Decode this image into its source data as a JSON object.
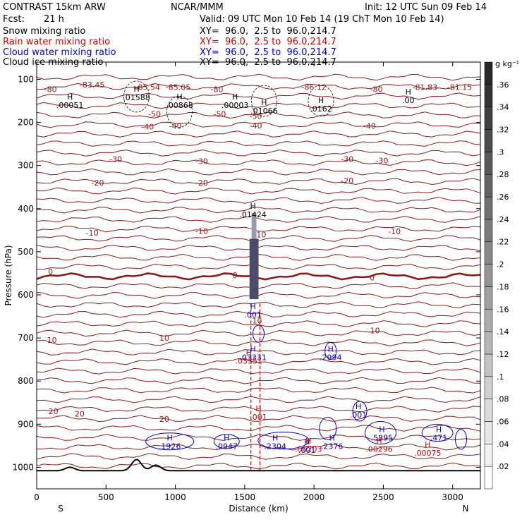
{
  "header": {
    "model": "CONTRAST 15km ARW",
    "org": "NCAR/MMM",
    "init": "Init: 12 UTC Sun 09 Feb 14",
    "fcst_label": "Fcst:",
    "fcst_value": "21 h",
    "valid": "Valid: 09 UTC Mon 10 Feb 14 (19 ChT Mon 10 Feb 14)",
    "fields": [
      {
        "name": "Snow mixing ratio",
        "xy": "XY=  96.0,  2.5 to  96.0,214.7",
        "color": "#000000"
      },
      {
        "name": "Rain water mixing ratio",
        "xy": "XY=  96.0,  2.5 to  96.0,214.7",
        "color": "#cc0000"
      },
      {
        "name": "Cloud water mixing ratio",
        "xy": "XY=  96.0,  2.5 to  96.0,214.7",
        "color": "#0000cc"
      },
      {
        "name": "Cloud ice mixing ratio",
        "xy": "XY=  96.0,  2.5 to  96.0,214.7",
        "color": "#000000"
      }
    ]
  },
  "chart_data": {
    "type": "contour cross-section",
    "xlabel": "Distance (km)",
    "ylabel": "Pressure (hPa)",
    "xlim": [
      0,
      3200
    ],
    "ylim": [
      1050,
      60
    ],
    "x_ticks": [
      0,
      500,
      1000,
      1500,
      2000,
      2500,
      3000
    ],
    "y_ticks": [
      100,
      200,
      300,
      400,
      500,
      600,
      700,
      800,
      900,
      1000
    ],
    "left_end": "S",
    "right_end": "N",
    "colorbar": {
      "unit": "g kg⁻¹",
      "levels": [
        0.02,
        0.04,
        0.06,
        0.08,
        0.1,
        0.12,
        0.14,
        0.16,
        0.18,
        0.2,
        0.22,
        0.24,
        0.26,
        0.28,
        0.3,
        0.32,
        0.34,
        0.36
      ],
      "level_labels": [
        ".02",
        ".04",
        ".06",
        ".08",
        ".1",
        ".12",
        ".14",
        ".16",
        ".18",
        ".2",
        ".22",
        ".24",
        ".26",
        ".28",
        ".3",
        ".32",
        ".34",
        ".36"
      ]
    },
    "temperature_labels": [
      {
        "text": "-83.45",
        "x": 400,
        "p": 112
      },
      {
        "text": "-85.54",
        "x": 800,
        "p": 118
      },
      {
        "text": "-85.05",
        "x": 1020,
        "p": 118
      },
      {
        "text": "-86.12",
        "x": 2000,
        "p": 118
      },
      {
        "text": "-81.83",
        "x": 2800,
        "p": 118
      },
      {
        "text": "-81.15",
        "x": 3050,
        "p": 118
      },
      {
        "text": "-80",
        "x": 100,
        "p": 123
      },
      {
        "text": "-80",
        "x": 1300,
        "p": 123
      },
      {
        "text": "-80",
        "x": 2450,
        "p": 123
      },
      {
        "text": "-50",
        "x": 850,
        "p": 180
      },
      {
        "text": "-50",
        "x": 1320,
        "p": 180
      },
      {
        "text": "-50",
        "x": 1580,
        "p": 185
      },
      {
        "text": "-40",
        "x": 800,
        "p": 210
      },
      {
        "text": "-40",
        "x": 1000,
        "p": 208
      },
      {
        "text": "-40",
        "x": 1580,
        "p": 207
      },
      {
        "text": "-40",
        "x": 2400,
        "p": 208
      },
      {
        "text": "-30",
        "x": 570,
        "p": 285
      },
      {
        "text": "-30",
        "x": 1190,
        "p": 290
      },
      {
        "text": "-30",
        "x": 2240,
        "p": 285
      },
      {
        "text": "-30",
        "x": 2490,
        "p": 288
      },
      {
        "text": "-20",
        "x": 440,
        "p": 340
      },
      {
        "text": "-20",
        "x": 1190,
        "p": 340
      },
      {
        "text": "-20",
        "x": 2240,
        "p": 335
      },
      {
        "text": "-10",
        "x": 400,
        "p": 456
      },
      {
        "text": "-10",
        "x": 1190,
        "p": 452
      },
      {
        "text": "-10",
        "x": 2580,
        "p": 453
      },
      {
        "text": "10",
        "x": 1620,
        "p": 460
      },
      {
        "text": "0",
        "x": 100,
        "p": 546
      },
      {
        "text": "0",
        "x": 1430,
        "p": 554
      },
      {
        "text": "0",
        "x": 2420,
        "p": 560
      },
      {
        "text": "10",
        "x": 1590,
        "p": 660
      },
      {
        "text": "10",
        "x": 110,
        "p": 705
      },
      {
        "text": "10",
        "x": 920,
        "p": 700
      },
      {
        "text": "10",
        "x": 2440,
        "p": 683
      },
      {
        "text": "20",
        "x": 120,
        "p": 870
      },
      {
        "text": "20",
        "x": 310,
        "p": 876
      },
      {
        "text": "20",
        "x": 920,
        "p": 888
      }
    ],
    "ice_maxima": [
      {
        "value": ".00051",
        "x": 240,
        "p": 152
      },
      {
        "value": ".01588",
        "x": 720,
        "p": 134
      },
      {
        "value": ".00868",
        "x": 1030,
        "p": 152
      },
      {
        "value": ".00003",
        "x": 1430,
        "p": 152
      },
      {
        "value": ".01066",
        "x": 1640,
        "p": 165
      },
      {
        "value": ".0162",
        "x": 2050,
        "p": 160
      },
      {
        "value": ".00",
        "x": 2680,
        "p": 140
      }
    ],
    "snow_maxima": [
      {
        "value": ".01424",
        "x": 1560,
        "p": 405
      }
    ],
    "cloud_water_maxima": [
      {
        "value": ".1926",
        "x": 960,
        "p": 943
      },
      {
        "value": ".0947",
        "x": 1370,
        "p": 943
      },
      {
        "value": ".2304",
        "x": 1720,
        "p": 943
      },
      {
        "value": ".2376",
        "x": 2130,
        "p": 943
      },
      {
        "value": ".2994",
        "x": 2120,
        "p": 737
      },
      {
        "value": ".5895",
        "x": 2490,
        "p": 923
      },
      {
        "value": ".471",
        "x": 2900,
        "p": 923
      },
      {
        "value": ".001",
        "x": 1560,
        "p": 638
      },
      {
        "value": ".03331",
        "x": 1560,
        "p": 737
      },
      {
        "value": ".001",
        "x": 1950,
        "p": 952
      },
      {
        "value": ".001",
        "x": 2320,
        "p": 870
      }
    ],
    "rain_maxima": [
      {
        "value": ".03351",
        "x": 1530,
        "p": 738
      },
      {
        "value": ".00203",
        "x": 1960,
        "p": 943
      },
      {
        "value": ".00296",
        "x": 2470,
        "p": 943
      },
      {
        "value": ".00075",
        "x": 2820,
        "p": 952
      },
      {
        "value": ".001",
        "x": 1600,
        "p": 868
      }
    ],
    "terrain": {
      "surface_p": 1008,
      "peaks": [
        {
          "x": 240,
          "p": 1000
        },
        {
          "x": 720,
          "p": 982
        },
        {
          "x": 860,
          "p": 995
        }
      ]
    }
  }
}
